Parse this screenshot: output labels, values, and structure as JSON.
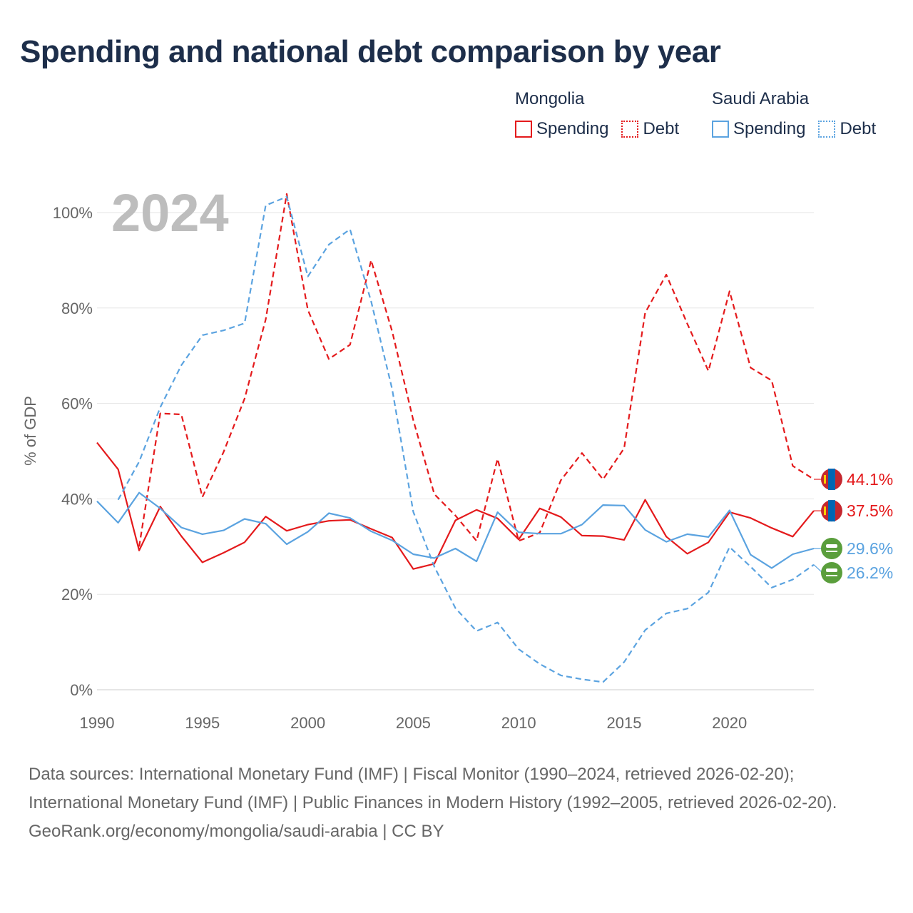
{
  "title": "Spending and national debt comparison by year",
  "legend": {
    "groups": [
      {
        "name": "Mongolia",
        "color": "#e41a1c",
        "items": [
          "Spending",
          "Debt"
        ]
      },
      {
        "name": "Saudi Arabia",
        "color": "#5ba3e0",
        "items": [
          "Spending",
          "Debt"
        ]
      }
    ]
  },
  "footer": {
    "sources": "Data sources: International Monetary Fund (IMF) | Fiscal Monitor (1990–2024, retrieved 2026-02-20); International Monetary Fund (IMF) | Public Finances in Modern History (1992–2005, retrieved 2026-02-20).",
    "attribution": "GeoRank.org/economy/mongolia/saudi-arabia | CC BY"
  },
  "chart_data": {
    "type": "line",
    "year_label": "2024",
    "ylabel": "% of GDP",
    "xlabel": "",
    "xlim": [
      1990,
      2024
    ],
    "ylim": [
      0,
      100
    ],
    "x_ticks": [
      1990,
      1995,
      2000,
      2005,
      2010,
      2015,
      2020
    ],
    "y_ticks": [
      0,
      20,
      40,
      60,
      80,
      100
    ],
    "y_tick_labels": [
      "0%",
      "20%",
      "40%",
      "60%",
      "80%",
      "100%"
    ],
    "grid": true,
    "series": [
      {
        "name": "Mongolia Spending",
        "country": "Mongolia",
        "metric": "Spending",
        "color": "#e41a1c",
        "dash": false,
        "end_label": "37.5%",
        "flag": "mongolia",
        "x": [
          1990,
          1991,
          1992,
          1993,
          1994,
          1995,
          1996,
          1997,
          1998,
          1999,
          2000,
          2001,
          2002,
          2003,
          2004,
          2005,
          2006,
          2007,
          2008,
          2009,
          2010,
          2011,
          2012,
          2013,
          2014,
          2015,
          2016,
          2017,
          2018,
          2019,
          2020,
          2021,
          2022,
          2023,
          2024
        ],
        "values": [
          51.8,
          46.2,
          29.2,
          38.4,
          32.2,
          26.7,
          28.7,
          30.9,
          36.3,
          33.3,
          34.6,
          35.4,
          35.6,
          33.7,
          31.9,
          25.3,
          26.4,
          35.5,
          37.7,
          35.9,
          31.5,
          38.0,
          36.2,
          32.3,
          32.2,
          31.4,
          39.8,
          32.1,
          28.5,
          30.9,
          37.2,
          36.0,
          33.9,
          32.1,
          37.5
        ]
      },
      {
        "name": "Mongolia Debt",
        "country": "Mongolia",
        "metric": "Debt",
        "color": "#e41a1c",
        "dash": true,
        "end_label": "44.1%",
        "flag": "mongolia",
        "x": [
          1992,
          1993,
          1994,
          1995,
          1996,
          1997,
          1998,
          1999,
          2000,
          2001,
          2002,
          2003,
          2004,
          2005,
          2006,
          2007,
          2008,
          2009,
          2010,
          2011,
          2012,
          2013,
          2014,
          2015,
          2016,
          2017,
          2018,
          2019,
          2020,
          2021,
          2022,
          2023,
          2024
        ],
        "values": [
          30.0,
          57.9,
          57.7,
          40.4,
          49.8,
          61.0,
          77.6,
          103.9,
          79.6,
          69.3,
          72.3,
          90.0,
          75.1,
          56.5,
          41.0,
          36.5,
          31.2,
          48.4,
          31.2,
          32.9,
          43.9,
          49.6,
          44.1,
          50.6,
          79.0,
          87.0,
          76.7,
          66.8,
          83.5,
          67.5,
          64.8,
          46.9,
          44.1
        ]
      },
      {
        "name": "Saudi Arabia Spending",
        "country": "Saudi Arabia",
        "metric": "Spending",
        "color": "#5ba3e0",
        "dash": false,
        "end_label": "29.6%",
        "flag": "saudi",
        "x": [
          1990,
          1991,
          1992,
          1993,
          1994,
          1995,
          1996,
          1997,
          1998,
          1999,
          2000,
          2001,
          2002,
          2003,
          2004,
          2005,
          2006,
          2007,
          2008,
          2009,
          2010,
          2011,
          2012,
          2013,
          2014,
          2015,
          2016,
          2017,
          2018,
          2019,
          2020,
          2021,
          2022,
          2023,
          2024
        ],
        "values": [
          39.5,
          35.0,
          41.3,
          38.0,
          34.0,
          32.6,
          33.4,
          35.8,
          34.8,
          30.5,
          33.1,
          37.0,
          36.0,
          33.2,
          31.3,
          28.4,
          27.6,
          29.6,
          26.9,
          37.2,
          33.0,
          32.7,
          32.7,
          34.6,
          38.7,
          38.6,
          33.5,
          31.0,
          32.6,
          32.0,
          37.6,
          28.3,
          25.5,
          28.4,
          29.6
        ]
      },
      {
        "name": "Saudi Arabia Debt",
        "country": "Saudi Arabia",
        "metric": "Debt",
        "color": "#5ba3e0",
        "dash": true,
        "end_label": "26.2%",
        "flag": "saudi",
        "x": [
          1991,
          1992,
          1993,
          1994,
          1995,
          1996,
          1997,
          1998,
          1999,
          2000,
          2001,
          2002,
          2003,
          2004,
          2005,
          2006,
          2007,
          2008,
          2009,
          2010,
          2011,
          2012,
          2013,
          2014,
          2015,
          2016,
          2017,
          2018,
          2019,
          2020,
          2021,
          2022,
          2023,
          2024
        ],
        "values": [
          39.8,
          47.8,
          59.2,
          68.0,
          74.3,
          75.3,
          76.8,
          101.5,
          103.3,
          86.6,
          93.3,
          96.5,
          81.4,
          63.0,
          37.3,
          25.8,
          17.1,
          12.3,
          14.1,
          8.5,
          5.4,
          3.0,
          2.2,
          1.6,
          5.8,
          12.5,
          16.0,
          17.0,
          20.4,
          29.9,
          25.8,
          21.4,
          23.1,
          26.2
        ]
      }
    ]
  }
}
